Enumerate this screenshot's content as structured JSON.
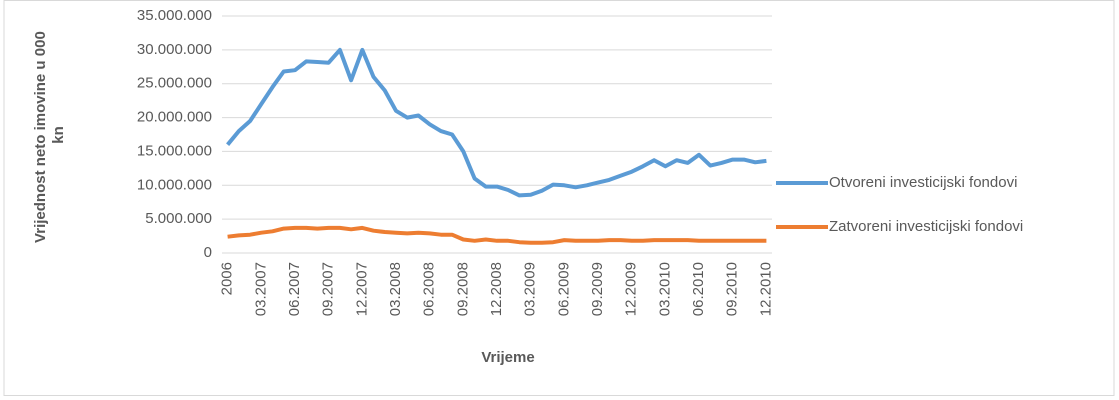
{
  "chart_data": {
    "type": "line",
    "xlabel": "Vrijeme",
    "ylabel": "Vrijednost neto imovine u 000 kn",
    "categories": [
      "2006",
      null,
      null,
      "03.2007",
      null,
      null,
      "06.2007",
      null,
      null,
      "09.2007",
      null,
      null,
      "12.2007",
      null,
      null,
      "03.2008",
      null,
      null,
      "06.2008",
      null,
      null,
      "09.2008",
      null,
      null,
      "12.2008",
      null,
      null,
      "03.2009",
      null,
      null,
      "06.2009",
      null,
      null,
      "09.2009",
      null,
      null,
      "12.2009",
      null,
      null,
      "03.2010",
      null,
      null,
      "06.2010",
      null,
      null,
      "09.2010",
      null,
      null,
      "12.2010"
    ],
    "series": [
      {
        "name": "Otvoreni investicijski fondovi",
        "color": "#5b9bd5",
        "values": [
          16000000,
          18000000,
          19500000,
          22000000,
          24500000,
          26800000,
          27000000,
          28300000,
          28200000,
          28100000,
          30000000,
          25500000,
          30000000,
          26000000,
          24000000,
          21000000,
          20000000,
          20300000,
          19000000,
          18000000,
          17500000,
          15000000,
          11000000,
          9800000,
          9800000,
          9300000,
          8500000,
          8600000,
          9200000,
          10100000,
          10000000,
          9700000,
          10000000,
          10400000,
          10800000,
          11400000,
          12000000,
          12800000,
          13700000,
          12800000,
          13700000,
          13300000,
          14500000,
          12900000,
          13300000,
          13800000,
          13800000,
          13400000,
          13600000
        ]
      },
      {
        "name": "Zatvoreni investicijski fondovi",
        "color": "#ed7d31",
        "values": [
          2400000,
          2600000,
          2700000,
          3000000,
          3200000,
          3600000,
          3700000,
          3700000,
          3600000,
          3700000,
          3700000,
          3500000,
          3700000,
          3300000,
          3100000,
          3000000,
          2900000,
          3000000,
          2900000,
          2700000,
          2700000,
          2000000,
          1800000,
          2000000,
          1800000,
          1800000,
          1600000,
          1500000,
          1500000,
          1600000,
          1900000,
          1800000,
          1800000,
          1800000,
          1900000,
          1900000,
          1800000,
          1800000,
          1900000,
          1900000,
          1900000,
          1900000,
          1800000,
          1800000,
          1800000,
          1800000,
          1800000,
          1800000,
          1800000
        ]
      }
    ],
    "ylim": [
      0,
      35000000
    ],
    "yticks": [
      0,
      {
        "value": 5000000,
        "label": "5.000.000"
      },
      {
        "value": 10000000,
        "label": "10.000.000"
      },
      {
        "value": 15000000,
        "label": "15.000.000"
      },
      {
        "value": 20000000,
        "label": "20.000.000"
      },
      {
        "value": 25000000,
        "label": "25.000.000"
      },
      {
        "value": 30000000,
        "label": "30.000.000"
      },
      {
        "value": 35000000,
        "label": "35.000.000"
      }
    ],
    "grid": true,
    "legend": "right"
  }
}
